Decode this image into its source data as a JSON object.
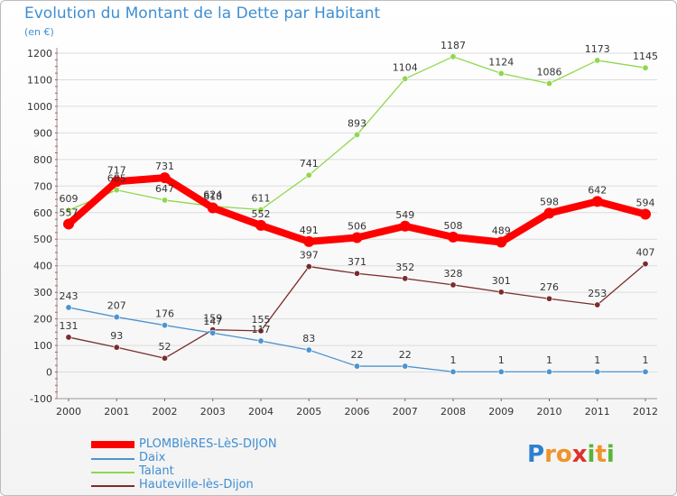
{
  "header": {
    "title": "Evolution du Montant de la Dette par Habitant",
    "subtitle": "(en €)"
  },
  "logo": {
    "letters": [
      "P",
      "r",
      "o",
      "x",
      "i",
      "t",
      "i"
    ]
  },
  "chart_data": {
    "type": "line",
    "title": "Evolution du Montant de la Dette par Habitant",
    "subtitle": "(en €)",
    "xlabel": "",
    "ylabel": "",
    "x": [
      "2000",
      "2001",
      "2002",
      "2003",
      "2004",
      "2005",
      "2006",
      "2007",
      "2008",
      "2009",
      "2010",
      "2011",
      "2012"
    ],
    "ylim": [
      -100,
      1200
    ],
    "yticks": [
      -100,
      0,
      100,
      200,
      300,
      400,
      500,
      600,
      700,
      800,
      900,
      1000,
      1100,
      1200
    ],
    "grid": "horizontal",
    "legend_position": "bottom-left",
    "series": [
      {
        "name": "PLOMBIèRES-LèS-DIJON",
        "color": "#ff0000",
        "values": [
          557,
          717,
          731,
          618,
          552,
          491,
          506,
          549,
          508,
          489,
          598,
          642,
          594
        ]
      },
      {
        "name": "Daix",
        "color": "#4d93cf",
        "values": [
          243,
          207,
          176,
          147,
          117,
          83,
          22,
          22,
          1,
          1,
          1,
          1,
          1
        ]
      },
      {
        "name": "Talant",
        "color": "#8fd84c",
        "values": [
          609,
          685,
          647,
          624,
          611,
          741,
          893,
          1104,
          1187,
          1124,
          1086,
          1173,
          1145
        ]
      },
      {
        "name": "Hauteville-lès-Dijon",
        "color": "#7a2c2c",
        "values": [
          131,
          93,
          52,
          159,
          155,
          397,
          371,
          352,
          328,
          301,
          276,
          253,
          407
        ]
      }
    ]
  }
}
